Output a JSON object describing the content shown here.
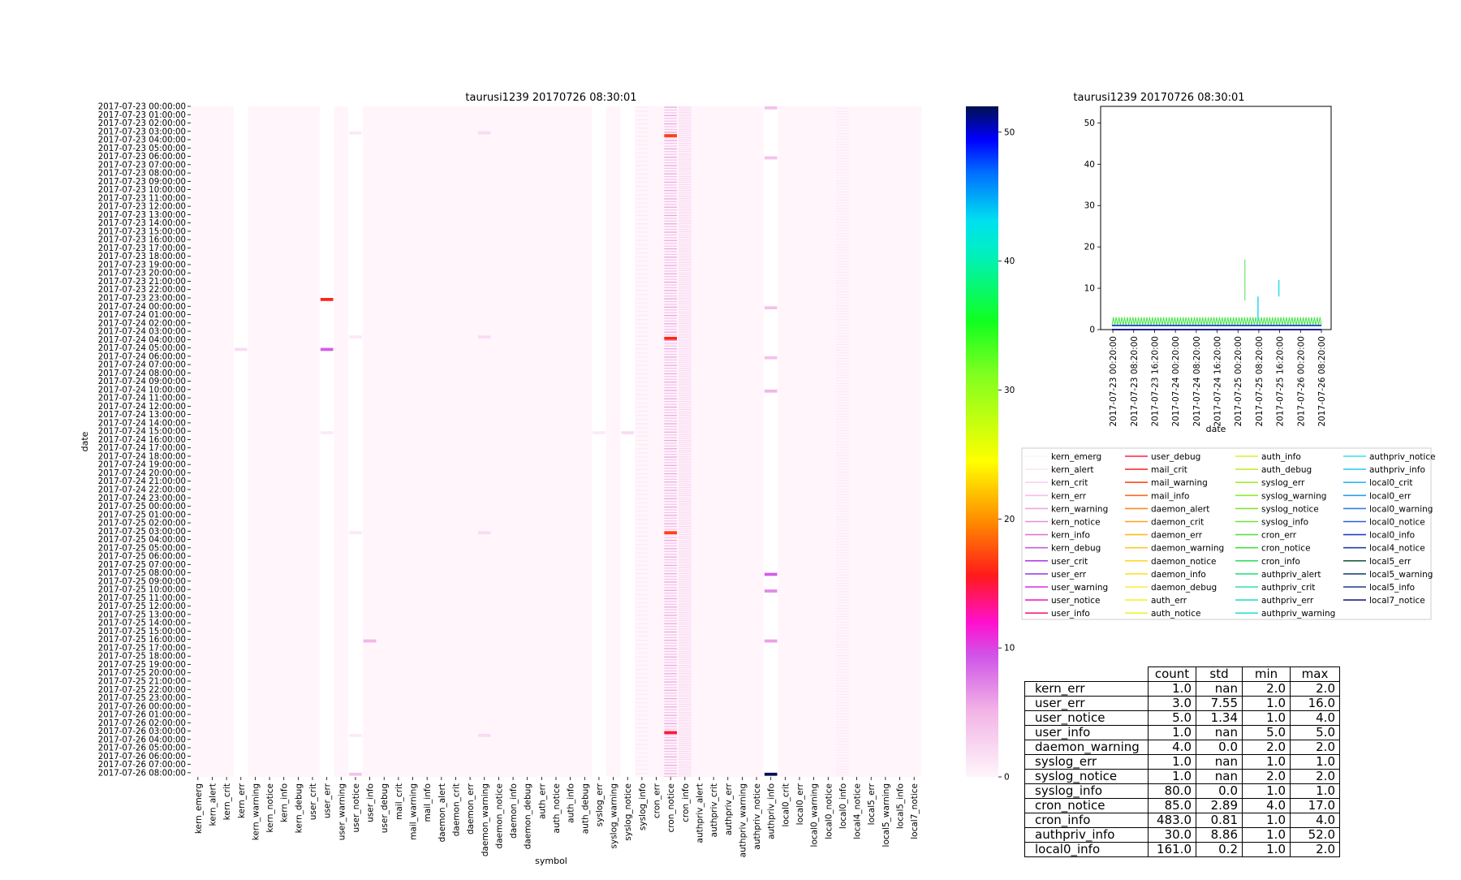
{
  "heatmap": {
    "title": "taurusi1239 20170726 08:30:01",
    "xlabel": "symbol",
    "ylabel": "date"
  },
  "colorbar": {
    "ticks": [
      0,
      10,
      20,
      30,
      40,
      50
    ],
    "range": [
      0,
      52
    ]
  },
  "line_chart": {
    "title": "taurusi1239 20170726 08:30:01",
    "xlabel": "date"
  },
  "table": {
    "columns": [
      "count",
      "std",
      "min",
      "max"
    ],
    "rows": [
      {
        "label": "kern_err",
        "cells": [
          "1.0",
          "nan",
          "2.0",
          "2.0"
        ]
      },
      {
        "label": "user_err",
        "cells": [
          "3.0",
          "7.55",
          "1.0",
          "16.0"
        ]
      },
      {
        "label": "user_notice",
        "cells": [
          "5.0",
          "1.34",
          "1.0",
          "4.0"
        ]
      },
      {
        "label": "user_info",
        "cells": [
          "1.0",
          "nan",
          "5.0",
          "5.0"
        ]
      },
      {
        "label": "daemon_warning",
        "cells": [
          "4.0",
          "0.0",
          "2.0",
          "2.0"
        ]
      },
      {
        "label": "syslog_err",
        "cells": [
          "1.0",
          "nan",
          "1.0",
          "1.0"
        ]
      },
      {
        "label": "syslog_notice",
        "cells": [
          "1.0",
          "nan",
          "2.0",
          "2.0"
        ]
      },
      {
        "label": "syslog_info",
        "cells": [
          "80.0",
          "0.0",
          "1.0",
          "1.0"
        ]
      },
      {
        "label": "cron_notice",
        "cells": [
          "85.0",
          "2.89",
          "4.0",
          "17.0"
        ]
      },
      {
        "label": "cron_info",
        "cells": [
          "483.0",
          "0.81",
          "1.0",
          "4.0"
        ]
      },
      {
        "label": "authpriv_info",
        "cells": [
          "30.0",
          "8.86",
          "1.0",
          "52.0"
        ]
      },
      {
        "label": "local0_info",
        "cells": [
          "161.0",
          "0.2",
          "1.0",
          "2.0"
        ]
      }
    ]
  },
  "chart_data": [
    {
      "type": "heatmap",
      "title": "taurusi1239 20170726 08:30:01",
      "xlabel": "symbol",
      "ylabel": "date",
      "columns": [
        "kern_emerg",
        "kern_alert",
        "kern_crit",
        "kern_err",
        "kern_warning",
        "kern_notice",
        "kern_info",
        "kern_debug",
        "user_crit",
        "user_err",
        "user_warning",
        "user_notice",
        "user_info",
        "user_debug",
        "mail_crit",
        "mail_warning",
        "mail_info",
        "daemon_alert",
        "daemon_crit",
        "daemon_err",
        "daemon_warning",
        "daemon_notice",
        "daemon_info",
        "daemon_debug",
        "auth_err",
        "auth_notice",
        "auth_info",
        "auth_debug",
        "syslog_err",
        "syslog_warning",
        "syslog_notice",
        "syslog_info",
        "cron_err",
        "cron_notice",
        "cron_info",
        "authpriv_alert",
        "authpriv_crit",
        "authpriv_err",
        "authpriv_warning",
        "authpriv_notice",
        "authpriv_info",
        "local0_crit",
        "local0_err",
        "local0_warning",
        "local0_notice",
        "local0_info",
        "local4_notice",
        "local5_err",
        "local5_warning",
        "local5_info",
        "local7_notice"
      ],
      "row_labels": [
        "2017-07-23 00:00:00",
        "2017-07-23 01:00:00",
        "2017-07-23 02:00:00",
        "2017-07-23 03:00:00",
        "2017-07-23 04:00:00",
        "2017-07-23 05:00:00",
        "2017-07-23 06:00:00",
        "2017-07-23 07:00:00",
        "2017-07-23 08:00:00",
        "2017-07-23 09:00:00",
        "2017-07-23 10:00:00",
        "2017-07-23 11:00:00",
        "2017-07-23 12:00:00",
        "2017-07-23 13:00:00",
        "2017-07-23 14:00:00",
        "2017-07-23 15:00:00",
        "2017-07-23 16:00:00",
        "2017-07-23 17:00:00",
        "2017-07-23 18:00:00",
        "2017-07-23 19:00:00",
        "2017-07-23 20:00:00",
        "2017-07-23 21:00:00",
        "2017-07-23 22:00:00",
        "2017-07-23 23:00:00",
        "2017-07-24 00:00:00",
        "2017-07-24 01:00:00",
        "2017-07-24 02:00:00",
        "2017-07-24 03:00:00",
        "2017-07-24 04:00:00",
        "2017-07-24 05:00:00",
        "2017-07-24 06:00:00",
        "2017-07-24 07:00:00",
        "2017-07-24 08:00:00",
        "2017-07-24 09:00:00",
        "2017-07-24 10:00:00",
        "2017-07-24 11:00:00",
        "2017-07-24 12:00:00",
        "2017-07-24 13:00:00",
        "2017-07-24 14:00:00",
        "2017-07-24 15:00:00",
        "2017-07-24 16:00:00",
        "2017-07-24 17:00:00",
        "2017-07-24 18:00:00",
        "2017-07-24 19:00:00",
        "2017-07-24 20:00:00",
        "2017-07-24 21:00:00",
        "2017-07-24 22:00:00",
        "2017-07-24 23:00:00",
        "2017-07-25 00:00:00",
        "2017-07-25 01:00:00",
        "2017-07-25 02:00:00",
        "2017-07-25 03:00:00",
        "2017-07-25 04:00:00",
        "2017-07-25 05:00:00",
        "2017-07-25 06:00:00",
        "2017-07-25 07:00:00",
        "2017-07-25 08:00:00",
        "2017-07-25 09:00:00",
        "2017-07-25 10:00:00",
        "2017-07-25 11:00:00",
        "2017-07-25 12:00:00",
        "2017-07-25 13:00:00",
        "2017-07-25 14:00:00",
        "2017-07-25 15:00:00",
        "2017-07-25 16:00:00",
        "2017-07-25 17:00:00",
        "2017-07-25 18:00:00",
        "2017-07-25 19:00:00",
        "2017-07-25 20:00:00",
        "2017-07-25 21:00:00",
        "2017-07-25 22:00:00",
        "2017-07-25 23:00:00",
        "2017-07-26 00:00:00",
        "2017-07-26 01:00:00",
        "2017-07-26 02:00:00",
        "2017-07-26 03:00:00",
        "2017-07-26 04:00:00",
        "2017-07-26 05:00:00",
        "2017-07-26 06:00:00",
        "2017-07-26 07:00:00",
        "2017-07-26 08:00:00"
      ],
      "row_start": "2017-07-23 00:00:00",
      "row_end": "2017-07-26 08:20:00",
      "row_step_minutes": 10,
      "colorbar": {
        "range": [
          0,
          52
        ],
        "ticks": [
          0,
          10,
          20,
          30,
          40,
          50
        ]
      },
      "highlights": [
        {
          "symbol": "kern_err",
          "date": "2017-07-24 05:00:00",
          "value": 2
        },
        {
          "symbol": "user_err",
          "date": "2017-07-23 23:00:00",
          "value": 16
        },
        {
          "symbol": "user_err",
          "date": "2017-07-24 05:00:00",
          "value": 9
        },
        {
          "symbol": "user_err",
          "date": "2017-07-24 15:00:00",
          "value": 1
        },
        {
          "symbol": "user_notice",
          "date": "2017-07-23 03:00:00",
          "value": 1
        },
        {
          "symbol": "user_notice",
          "date": "2017-07-24 03:30:00",
          "value": 1
        },
        {
          "symbol": "user_notice",
          "date": "2017-07-25 03:00:00",
          "value": 1
        },
        {
          "symbol": "user_notice",
          "date": "2017-07-26 03:20:00",
          "value": 1
        },
        {
          "symbol": "user_notice",
          "date": "2017-07-26 08:00:00",
          "value": 4
        },
        {
          "symbol": "user_info",
          "date": "2017-07-25 16:00:00",
          "value": 5
        },
        {
          "symbol": "daemon_warning",
          "date": "2017-07-23 03:00:00",
          "value": 2
        },
        {
          "symbol": "daemon_warning",
          "date": "2017-07-24 03:30:00",
          "value": 2
        },
        {
          "symbol": "daemon_warning",
          "date": "2017-07-25 03:00:00",
          "value": 2
        },
        {
          "symbol": "daemon_warning",
          "date": "2017-07-26 03:20:00",
          "value": 2
        },
        {
          "symbol": "syslog_err",
          "date": "2017-07-24 15:00:00",
          "value": 1
        },
        {
          "symbol": "syslog_notice",
          "date": "2017-07-24 15:00:00",
          "value": 2
        },
        {
          "symbol": "cron_notice",
          "date": "2017-07-23 03:20:00",
          "value": 17
        },
        {
          "symbol": "cron_notice",
          "date": "2017-07-24 03:40:00",
          "value": 16
        },
        {
          "symbol": "cron_notice",
          "date": "2017-07-25 03:00:00",
          "value": 17
        },
        {
          "symbol": "cron_notice",
          "date": "2017-07-26 03:00:00",
          "value": 15
        },
        {
          "symbol": "authpriv_info",
          "date": "2017-07-23 00:00:00",
          "value": 4
        },
        {
          "symbol": "authpriv_info",
          "date": "2017-07-23 06:00:00",
          "value": 4
        },
        {
          "symbol": "authpriv_info",
          "date": "2017-07-24 00:00:00",
          "value": 4
        },
        {
          "symbol": "authpriv_info",
          "date": "2017-07-24 06:00:00",
          "value": 4
        },
        {
          "symbol": "authpriv_info",
          "date": "2017-07-24 10:00:00",
          "value": 5
        },
        {
          "symbol": "authpriv_info",
          "date": "2017-07-25 08:00:00",
          "value": 9
        },
        {
          "symbol": "authpriv_info",
          "date": "2017-07-25 10:00:00",
          "value": 7
        },
        {
          "symbol": "authpriv_info",
          "date": "2017-07-25 16:00:00",
          "value": 6
        },
        {
          "symbol": "authpriv_info",
          "date": "2017-07-26 08:00:00",
          "value": 52
        }
      ]
    },
    {
      "type": "line",
      "title": "taurusi1239 20170726 08:30:01",
      "xlabel": "date",
      "ylim": [
        0,
        54
      ],
      "yticks": [
        0,
        10,
        20,
        30,
        40,
        50
      ],
      "xticks": [
        "2017-07-23 00:20:00",
        "2017-07-23 08:20:00",
        "2017-07-23 16:20:00",
        "2017-07-24 00:20:00",
        "2017-07-24 08:20:00",
        "2017-07-24 16:20:00",
        "2017-07-25 00:20:00",
        "2017-07-25 08:20:00",
        "2017-07-25 16:20:00",
        "2017-07-26 00:20:00",
        "2017-07-26 08:20:00"
      ],
      "x_range": [
        "2017-07-23 00:00:00",
        "2017-07-26 08:20:00"
      ],
      "series": [
        {
          "name": "cron_info",
          "color": "#44e244",
          "pattern": "oscillating",
          "low": 1,
          "high": 3
        },
        {
          "name": "syslog_info",
          "color": "#7ee84a",
          "pattern": "constant",
          "value": 1
        },
        {
          "name": "local0_info",
          "color": "#1e3fd8",
          "pattern": "constant",
          "value": 1
        },
        {
          "name": "cron_notice",
          "color": "#4fe04f",
          "pattern": "spike",
          "x": "2017-07-25 03:00:00",
          "low": 7,
          "high": 17
        },
        {
          "name": "authpriv_info",
          "color": "#38dde8",
          "pattern": "spikes",
          "points": [
            {
              "x": "2017-07-25 08:00:00",
              "low": 2,
              "high": 8
            },
            {
              "x": "2017-07-25 16:00:00",
              "low": 8,
              "high": 12
            }
          ]
        },
        {
          "name": "local7_notice",
          "color": "#000080",
          "pattern": "constant",
          "value": 0
        }
      ],
      "legend_placement": "below"
    }
  ],
  "legend": {
    "entries": [
      {
        "name": "kern_emerg",
        "color": "#fff2fb"
      },
      {
        "name": "kern_alert",
        "color": "#fde4f5"
      },
      {
        "name": "kern_crit",
        "color": "#fad2ee"
      },
      {
        "name": "kern_err",
        "color": "#f6bde7"
      },
      {
        "name": "kern_warning",
        "color": "#f1a6e0"
      },
      {
        "name": "kern_notice",
        "color": "#ea8ed8"
      },
      {
        "name": "kern_info",
        "color": "#e074d6"
      },
      {
        "name": "kern_debug",
        "color": "#c45ee0"
      },
      {
        "name": "user_crit",
        "color": "#b040e0"
      },
      {
        "name": "user_err",
        "color": "#9c45e6"
      },
      {
        "name": "user_warning",
        "color": "#d82ee0"
      },
      {
        "name": "user_notice",
        "color": "#f020c8"
      },
      {
        "name": "user_info",
        "color": "#f8207a"
      },
      {
        "name": "user_debug",
        "color": "#ff2040"
      },
      {
        "name": "mail_crit",
        "color": "#ff3030"
      },
      {
        "name": "mail_warning",
        "color": "#ff4a20"
      },
      {
        "name": "mail_info",
        "color": "#ff6a20"
      },
      {
        "name": "daemon_alert",
        "color": "#ff8a20"
      },
      {
        "name": "daemon_crit",
        "color": "#ffa020"
      },
      {
        "name": "daemon_err",
        "color": "#ffb820"
      },
      {
        "name": "daemon_warning",
        "color": "#ffc828"
      },
      {
        "name": "daemon_notice",
        "color": "#ffd828"
      },
      {
        "name": "daemon_info",
        "color": "#ffe030"
      },
      {
        "name": "daemon_debug",
        "color": "#ffec30"
      },
      {
        "name": "auth_err",
        "color": "#f8f430"
      },
      {
        "name": "auth_notice",
        "color": "#eaf430"
      },
      {
        "name": "auth_info",
        "color": "#d8f030"
      },
      {
        "name": "auth_debug",
        "color": "#c0ee30"
      },
      {
        "name": "syslog_err",
        "color": "#a8ec30"
      },
      {
        "name": "syslog_warning",
        "color": "#90ea30"
      },
      {
        "name": "syslog_notice",
        "color": "#80e830"
      },
      {
        "name": "syslog_info",
        "color": "#6ee438"
      },
      {
        "name": "cron_err",
        "color": "#58e040"
      },
      {
        "name": "cron_notice",
        "color": "#44e048"
      },
      {
        "name": "cron_info",
        "color": "#38e060"
      },
      {
        "name": "authpriv_alert",
        "color": "#30e080"
      },
      {
        "name": "authpriv_crit",
        "color": "#30e0a0"
      },
      {
        "name": "authpriv_err",
        "color": "#30e0c0"
      },
      {
        "name": "authpriv_warning",
        "color": "#30e0d8"
      },
      {
        "name": "authpriv_notice",
        "color": "#30e0f0"
      },
      {
        "name": "authpriv_info",
        "color": "#30d0f0"
      },
      {
        "name": "local0_crit",
        "color": "#30b8f0"
      },
      {
        "name": "local0_err",
        "color": "#309cf0"
      },
      {
        "name": "local0_warning",
        "color": "#3080e8"
      },
      {
        "name": "local0_notice",
        "color": "#2860e0"
      },
      {
        "name": "local0_info",
        "color": "#2040d0"
      },
      {
        "name": "local4_notice",
        "color": "#2040a8"
      },
      {
        "name": "local5_err",
        "color": "#206040"
      },
      {
        "name": "local5_warning",
        "color": "#204878"
      },
      {
        "name": "local5_info",
        "color": "#203880"
      },
      {
        "name": "local7_notice",
        "color": "#202080"
      }
    ]
  }
}
